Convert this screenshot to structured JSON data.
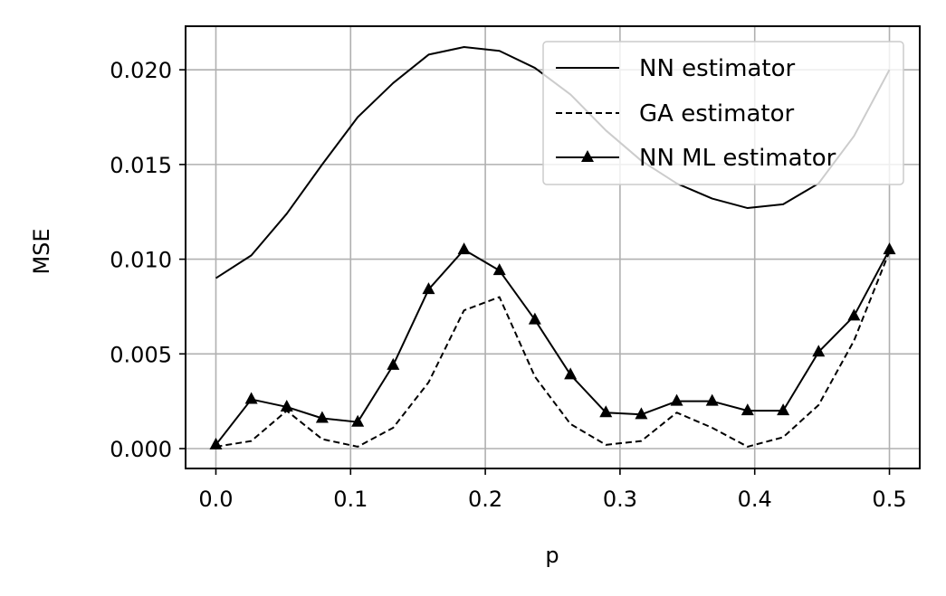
{
  "chart_data": {
    "type": "line",
    "title": "",
    "xlabel": "p",
    "ylabel": "MSE",
    "xlim": [
      -0.0225,
      0.5225
    ],
    "ylim": [
      -0.00105,
      0.0223
    ],
    "xticks": [
      0.0,
      0.1,
      0.2,
      0.3,
      0.4,
      0.5
    ],
    "xtick_labels": [
      "0.0",
      "0.1",
      "0.2",
      "0.3",
      "0.4",
      "0.5"
    ],
    "yticks": [
      0.0,
      0.005,
      0.01,
      0.015,
      0.02
    ],
    "ytick_labels": [
      "0.000",
      "0.005",
      "0.010",
      "0.015",
      "0.020"
    ],
    "grid": true,
    "legend_position": "top-right",
    "x": [
      0.0,
      0.0263,
      0.0526,
      0.0789,
      0.1053,
      0.1316,
      0.1579,
      0.1842,
      0.2105,
      0.2368,
      0.2632,
      0.2895,
      0.3158,
      0.3421,
      0.3684,
      0.3947,
      0.4211,
      0.4474,
      0.4737,
      0.5
    ],
    "series": [
      {
        "name": "NN estimator",
        "style": "solid",
        "marker": "none",
        "color": "#000000",
        "values": [
          0.009,
          0.0102,
          0.0124,
          0.015,
          0.0175,
          0.0193,
          0.0208,
          0.0212,
          0.021,
          0.0201,
          0.0187,
          0.0168,
          0.0152,
          0.014,
          0.0132,
          0.0127,
          0.0129,
          0.014,
          0.0165,
          0.02
        ]
      },
      {
        "name": "GA estimator",
        "style": "dashed",
        "marker": "none",
        "color": "#000000",
        "values": [
          0.0001,
          0.0004,
          0.002,
          0.0005,
          0.0001,
          0.0011,
          0.0035,
          0.0073,
          0.008,
          0.0038,
          0.0013,
          0.0002,
          0.0004,
          0.0019,
          0.0011,
          0.0001,
          0.0006,
          0.0023,
          0.0057,
          0.0104
        ]
      },
      {
        "name": "NN ML estimator",
        "style": "solid",
        "marker": "triangle",
        "color": "#000000",
        "values": [
          0.0002,
          0.0026,
          0.0022,
          0.0016,
          0.0014,
          0.0044,
          0.0084,
          0.0105,
          0.0094,
          0.0068,
          0.0039,
          0.0019,
          0.0018,
          0.0025,
          0.0025,
          0.002,
          0.002,
          0.0051,
          0.007,
          0.0105
        ]
      }
    ]
  }
}
